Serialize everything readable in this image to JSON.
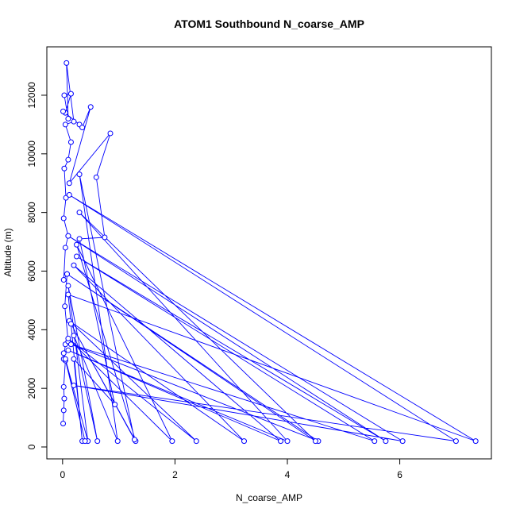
{
  "chart_data": {
    "type": "line",
    "title": "ATOM1 Southbound N_coarse_AMP",
    "x_label": "N_coarse_AMP",
    "y_label": "Altitude (m)",
    "color": "#0000ff",
    "markers": true,
    "x": [
      0.01,
      0.02,
      0.03,
      0.02,
      0.05,
      0.02,
      0.05,
      0.1,
      0.04,
      0.08,
      0.02,
      0.05,
      0.1,
      0.02,
      0.06,
      0.03,
      0.1,
      0.15,
      0.05,
      0.2,
      0.07,
      0.1,
      0.03,
      0.15,
      0.05,
      0.01,
      0.3,
      0.35,
      0.5,
      0.12,
      0.85,
      0.6,
      0.75,
      0.3,
      0.93,
      0.2,
      0.35,
      0.1,
      7.35,
      0.12,
      7.0,
      0.2,
      6.05,
      0.1,
      5.75,
      0.25,
      5.55,
      0.15,
      4.55,
      0.08,
      4.5,
      0.3,
      4.0,
      0.1,
      3.88,
      0.2,
      3.23,
      0.12,
      2.38,
      0.1,
      1.95,
      0.25,
      1.3,
      0.15,
      1.28,
      0.3,
      0.98,
      0.2,
      0.62,
      0.1,
      0.45,
      0.05,
      0.4,
      0.02
    ],
    "values": [
      800,
      1250,
      1650,
      2050,
      2950,
      3000,
      3500,
      3600,
      4800,
      5900,
      5700,
      6800,
      7200,
      7800,
      8500,
      9500,
      9800,
      10400,
      11000,
      11100,
      13100,
      11200,
      12000,
      12050,
      11400,
      11450,
      11000,
      10900,
      11600,
      9000,
      10700,
      9200,
      7150,
      7100,
      1450,
      3000,
      200,
      5200,
      200,
      8600,
      200,
      2100,
      200,
      7200,
      200,
      6500,
      200,
      3500,
      200,
      5900,
      200,
      8000,
      200,
      3300,
      200,
      6200,
      200,
      4300,
      200,
      3700,
      200,
      6900,
      200,
      4200,
      250,
      9300,
      200,
      3800,
      200,
      5500,
      200,
      3000,
      200,
      3200
    ],
    "xlim": [
      -0.28,
      7.63
    ],
    "ylim": [
      -406,
      13651
    ],
    "xticks": [
      0,
      2,
      4,
      6
    ],
    "yticks": [
      0,
      2000,
      4000,
      6000,
      8000,
      10000,
      12000
    ]
  }
}
